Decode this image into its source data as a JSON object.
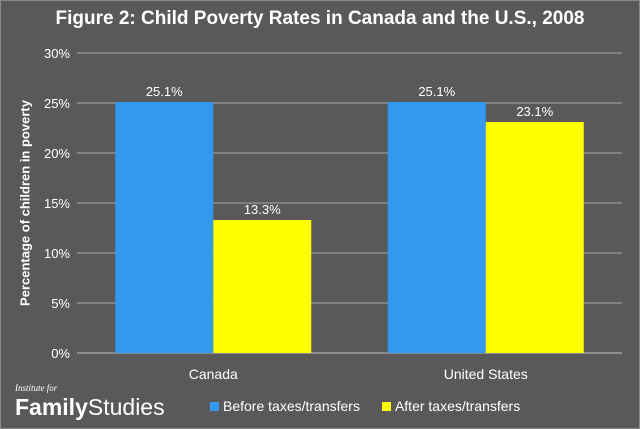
{
  "chart_data": {
    "type": "bar",
    "title": "Figure 2: Child Poverty Rates in Canada and the U.S., 2008",
    "xlabel": "",
    "ylabel": "Percentage of children in poverty",
    "categories": [
      "Canada",
      "United States"
    ],
    "series": [
      {
        "name": "Before taxes/transfers",
        "values": [
          25.1,
          25.1
        ],
        "labels": [
          "25.1%",
          "25.1%"
        ],
        "color": "#3399f0"
      },
      {
        "name": "After taxes/transfers",
        "values": [
          13.3,
          23.1
        ],
        "labels": [
          "13.3%",
          "23.1%"
        ],
        "color": "#ffff00"
      }
    ],
    "ylim": [
      0,
      30
    ],
    "yticks": [
      "0%",
      "5%",
      "10%",
      "15%",
      "20%",
      "25%",
      "30%"
    ],
    "grid": true,
    "legend": "bottom"
  },
  "logo": {
    "small": "Institute for",
    "bold": "Family",
    "light": "Studies"
  }
}
